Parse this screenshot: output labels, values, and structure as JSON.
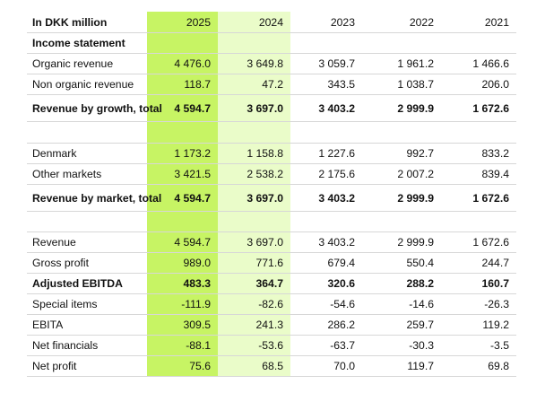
{
  "header": {
    "label": "In DKK million",
    "years": [
      "2025",
      "2024",
      "2023",
      "2022",
      "2021"
    ]
  },
  "sections": [
    {
      "title": "Income statement",
      "rows": [
        {
          "label": "Organic revenue",
          "values": [
            "4 476.0",
            "3 649.8",
            "3 059.7",
            "1 961.2",
            "1 466.6"
          ],
          "bold": false
        },
        {
          "label": "Non organic revenue",
          "values": [
            "118.7",
            "47.2",
            "343.5",
            "1 038.7",
            "206.0"
          ],
          "bold": false
        }
      ],
      "total": {
        "label": "Revenue by growth, total",
        "values": [
          "4 594.7",
          "3 697.0",
          "3 403.2",
          "2 999.9",
          "1 672.6"
        ]
      }
    },
    {
      "rows": [
        {
          "label": "Denmark",
          "values": [
            "1 173.2",
            "1 158.8",
            "1 227.6",
            "992.7",
            "833.2"
          ],
          "bold": false
        },
        {
          "label": "Other markets",
          "values": [
            "3 421.5",
            "2 538.2",
            "2 175.6",
            "2 007.2",
            "839.4"
          ],
          "bold": false
        }
      ],
      "total": {
        "label": "Revenue by market, total",
        "values": [
          "4 594.7",
          "3 697.0",
          "3 403.2",
          "2 999.9",
          "1 672.6"
        ]
      }
    },
    {
      "rows": [
        {
          "label": "Revenue",
          "values": [
            "4 594.7",
            "3 697.0",
            "3 403.2",
            "2 999.9",
            "1 672.6"
          ],
          "bold": false
        },
        {
          "label": "Gross profit",
          "values": [
            "989.0",
            "771.6",
            "679.4",
            "550.4",
            "244.7"
          ],
          "bold": false
        },
        {
          "label": "Adjusted EBITDA",
          "values": [
            "483.3",
            "364.7",
            "320.6",
            "288.2",
            "160.7"
          ],
          "bold": true
        },
        {
          "label": "Special items",
          "values": [
            "-111.9",
            "-82.6",
            "-54.6",
            "-14.6",
            "-26.3"
          ],
          "bold": false
        },
        {
          "label": "EBITA",
          "values": [
            "309.5",
            "241.3",
            "286.2",
            "259.7",
            "119.2"
          ],
          "bold": false
        },
        {
          "label": "Net financials",
          "values": [
            "-88.1",
            "-53.6",
            "-63.7",
            "-30.3",
            "-3.5"
          ],
          "bold": false
        },
        {
          "label": "Net profit",
          "values": [
            "75.6",
            "68.5",
            "70.0",
            "119.7",
            "69.8"
          ],
          "bold": false
        }
      ]
    }
  ],
  "colors": {
    "highlight_2025": "#c7f464",
    "highlight_2024": "#eafcc9",
    "rule": "#d7d7d7"
  }
}
